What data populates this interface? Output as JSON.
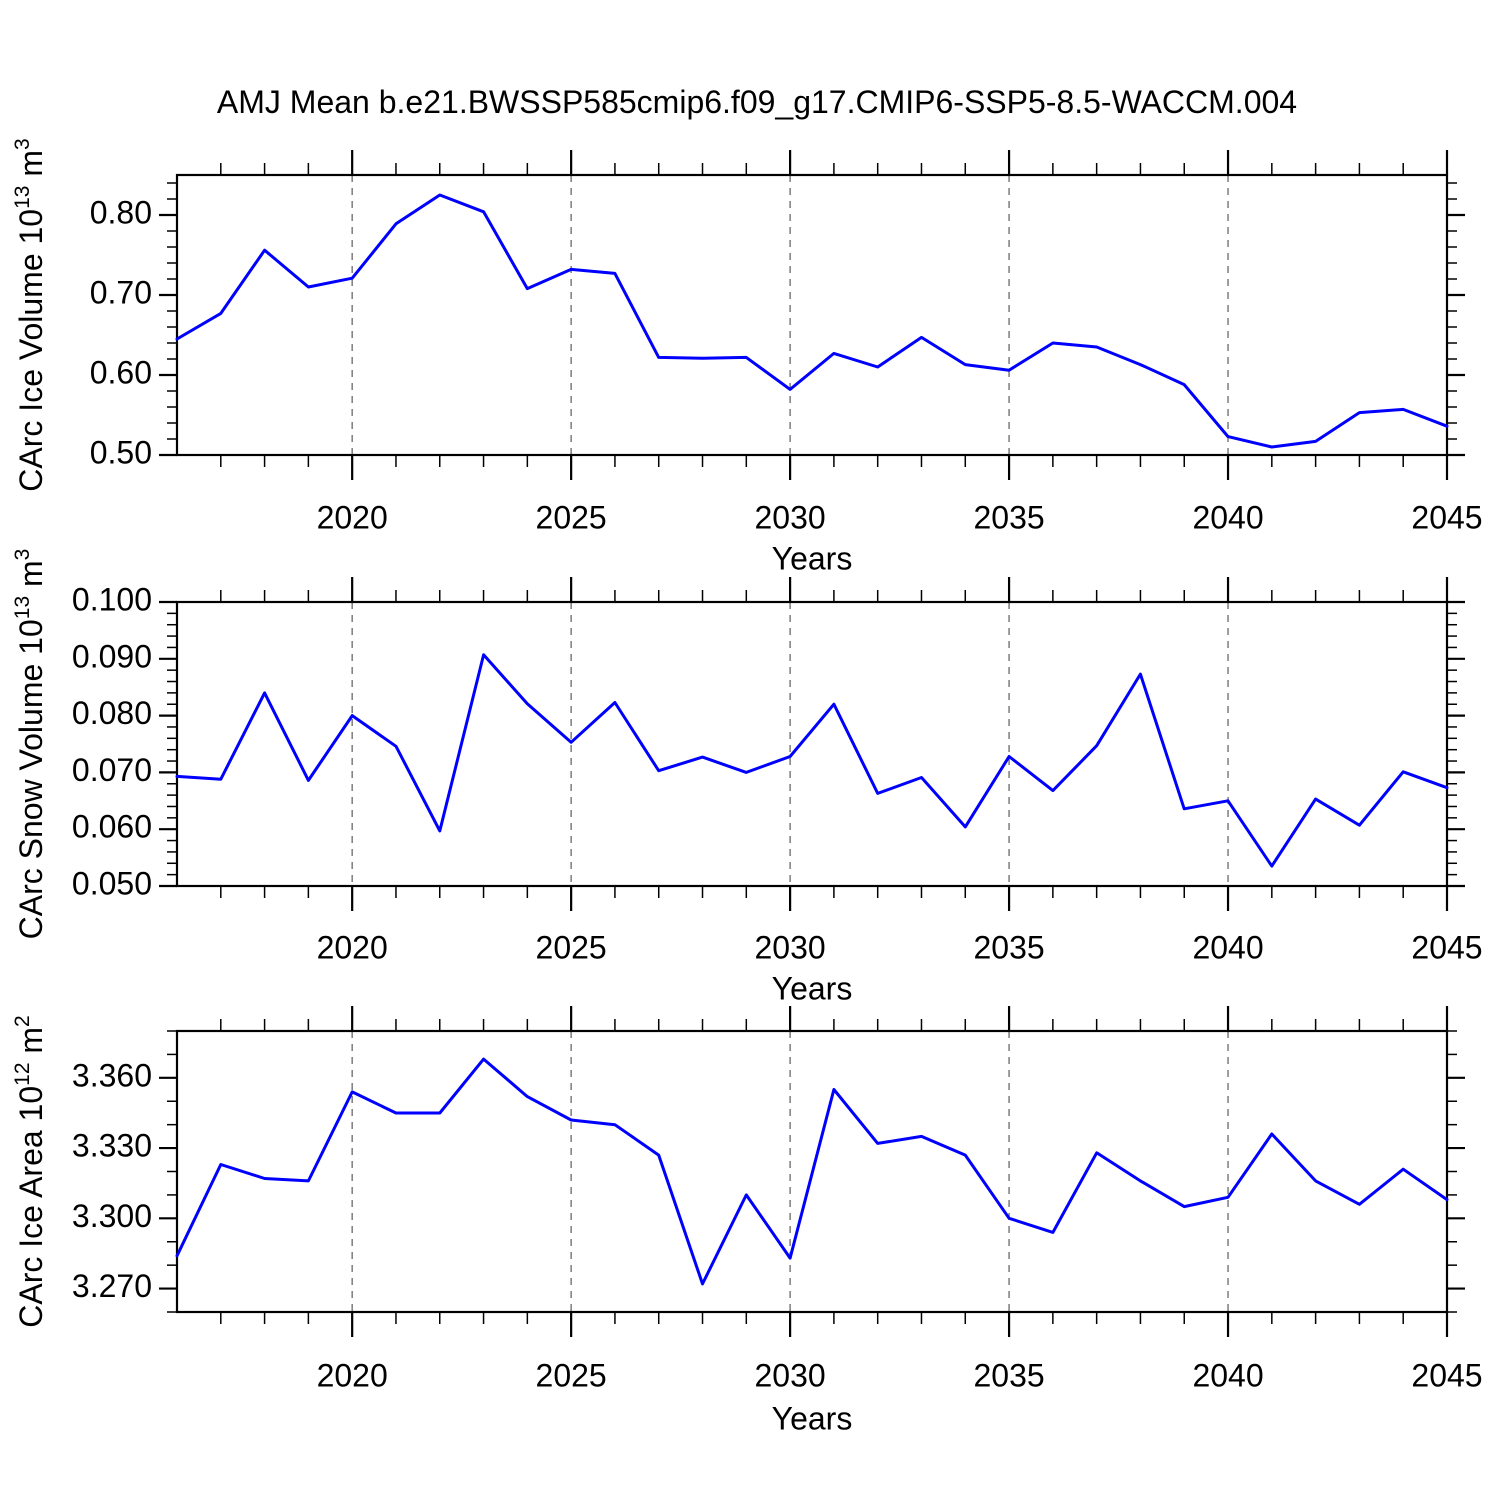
{
  "title": "AMJ Mean b.e21.BWSSP585cmip6.f09_g17.CMIP6-SSP5-8.5-WACCM.004",
  "colors": {
    "line": "#0000ff",
    "grid": "#737373",
    "axis": "#000000",
    "text": "#000000",
    "background": "#ffffff"
  },
  "x_axis": {
    "label": "Years",
    "min": 2016,
    "max": 2045,
    "major_ticks": [
      2020,
      2025,
      2030,
      2035,
      2040,
      2045
    ],
    "major_tick_labels": [
      "2020",
      "2025",
      "2030",
      "2035",
      "2040",
      "2045"
    ],
    "minor_step": 1
  },
  "years": [
    2016,
    2017,
    2018,
    2019,
    2020,
    2021,
    2022,
    2023,
    2024,
    2025,
    2026,
    2027,
    2028,
    2029,
    2030,
    2031,
    2032,
    2033,
    2034,
    2035,
    2036,
    2037,
    2038,
    2039,
    2040,
    2041,
    2042,
    2043,
    2044,
    2045
  ],
  "chart_data": [
    {
      "type": "line",
      "name": "carc-ice-volume",
      "ylabel_text": "CArc Ice Volume 10^13 m^3",
      "ylabel_segments": [
        {
          "text": "CArc Ice Volume 10"
        },
        {
          "text": "13",
          "sup": true
        },
        {
          "text": " m"
        },
        {
          "text": "3",
          "sup": true
        }
      ],
      "xlabel": "Years",
      "ylim": [
        0.5,
        0.85
      ],
      "y_major_ticks": [
        0.5,
        0.6,
        0.7,
        0.8
      ],
      "y_major_labels": [
        "0.50",
        "0.60",
        "0.70",
        "0.80"
      ],
      "y_minor_step": 0.02,
      "grid_on": true,
      "legend": "none",
      "values": [
        0.645,
        0.677,
        0.756,
        0.71,
        0.721,
        0.789,
        0.825,
        0.804,
        0.708,
        0.732,
        0.727,
        0.622,
        0.621,
        0.622,
        0.582,
        0.627,
        0.61,
        0.647,
        0.613,
        0.606,
        0.64,
        0.635,
        0.613,
        0.588,
        0.523,
        0.51,
        0.517,
        0.553,
        0.557,
        0.536
      ]
    },
    {
      "type": "line",
      "name": "carc-snow-volume",
      "ylabel_text": "CArc Snow Volume 10^13 m^3",
      "ylabel_segments": [
        {
          "text": "CArc Snow Volume 10"
        },
        {
          "text": "13",
          "sup": true
        },
        {
          "text": " m"
        },
        {
          "text": "3",
          "sup": true
        }
      ],
      "xlabel": "Years",
      "ylim": [
        0.05,
        0.1
      ],
      "y_major_ticks": [
        0.05,
        0.06,
        0.07,
        0.08,
        0.09,
        0.1
      ],
      "y_major_labels": [
        "0.050",
        "0.060",
        "0.070",
        "0.080",
        "0.090",
        "0.100"
      ],
      "y_minor_step": 0.002,
      "grid_on": true,
      "legend": "none",
      "values": [
        0.0693,
        0.0688,
        0.084,
        0.0686,
        0.08,
        0.0746,
        0.0597,
        0.0907,
        0.0821,
        0.0753,
        0.0823,
        0.0703,
        0.0727,
        0.07,
        0.0728,
        0.082,
        0.0663,
        0.0691,
        0.0604,
        0.0728,
        0.0668,
        0.0747,
        0.0873,
        0.0636,
        0.065,
        0.0535,
        0.0653,
        0.0607,
        0.0701,
        0.0673
      ]
    },
    {
      "type": "line",
      "name": "carc-ice-area",
      "ylabel_text": "CArc Ice Area 10^12 m^2",
      "ylabel_segments": [
        {
          "text": "CArc Ice Area 10"
        },
        {
          "text": "12",
          "sup": true
        },
        {
          "text": " m"
        },
        {
          "text": "2",
          "sup": true
        }
      ],
      "xlabel": "Years",
      "ylim": [
        3.26,
        3.38
      ],
      "y_major_ticks": [
        3.27,
        3.3,
        3.33,
        3.36
      ],
      "y_major_labels": [
        "3.270",
        "3.300",
        "3.330",
        "3.360"
      ],
      "y_minor_step": 0.01,
      "grid_on": true,
      "legend": "none",
      "values": [
        3.284,
        3.323,
        3.317,
        3.316,
        3.354,
        3.345,
        3.345,
        3.368,
        3.352,
        3.342,
        3.34,
        3.327,
        3.272,
        3.31,
        3.283,
        3.355,
        3.332,
        3.335,
        3.327,
        3.3,
        3.294,
        3.328,
        3.316,
        3.305,
        3.309,
        3.336,
        3.316,
        3.306,
        3.321,
        3.308
      ]
    }
  ]
}
